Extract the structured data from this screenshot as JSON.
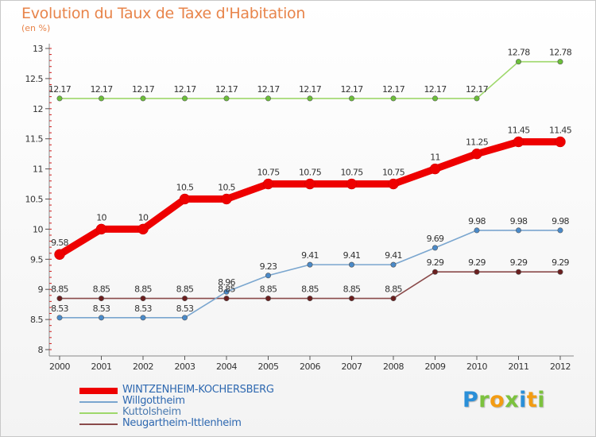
{
  "header": {
    "title": "Evolution du Taux de Taxe d'Habitation",
    "unit": "(en %)"
  },
  "brand": {
    "letters": [
      "P",
      "r",
      "o",
      "x",
      "i",
      "t",
      "i"
    ],
    "colors": [
      "#2a8fd8",
      "#7cc23e",
      "#f39c12",
      "#7cc23e",
      "#2a8fd8",
      "#f39c12",
      "#7cc23e"
    ]
  },
  "chart_data": {
    "type": "line",
    "title": "Evolution du Taux de Taxe d'Habitation",
    "xlabel": "",
    "ylabel": "(en %)",
    "x": [
      "2000",
      "2001",
      "2002",
      "2003",
      "2004",
      "2005",
      "2006",
      "2007",
      "2008",
      "2009",
      "2010",
      "2011",
      "2012"
    ],
    "ylim": [
      8,
      13
    ],
    "yticks": [
      "8",
      "8.5",
      "9",
      "9.5",
      "10",
      "10.5",
      "11",
      "11.5",
      "12",
      "12.5",
      "13"
    ],
    "grid": false,
    "legend_position": "bottom-left",
    "series": [
      {
        "name": "WINTZENHEIM-KOCHERSBERG",
        "color": "#ee0000",
        "marker_color": "#ee0000",
        "values": [
          9.58,
          10,
          10,
          10.5,
          10.5,
          10.75,
          10.75,
          10.75,
          10.75,
          11,
          11.25,
          11.45,
          11.45
        ],
        "labels": [
          "9.58",
          "10",
          "10",
          "10.5",
          "10.5",
          "10.75",
          "10.75",
          "10.75",
          "10.75",
          "11",
          "11.25",
          "11.45",
          "11.45"
        ]
      },
      {
        "name": "Willgottheim",
        "color": "#7aa6cf",
        "marker_color": "#4a8ac9",
        "values": [
          8.53,
          8.53,
          8.53,
          8.53,
          8.96,
          9.23,
          9.41,
          9.41,
          9.41,
          9.69,
          9.98,
          9.98,
          9.98
        ],
        "labels": [
          "8.53",
          "8.53",
          "8.53",
          "8.53",
          "8.96",
          "9.23",
          "9.41",
          "9.41",
          "9.41",
          "9.69",
          "9.98",
          "9.98",
          "9.98"
        ]
      },
      {
        "name": "Kuttolsheim",
        "color": "#9ed86b",
        "marker_color": "#6cbf3a",
        "values": [
          12.17,
          12.17,
          12.17,
          12.17,
          12.17,
          12.17,
          12.17,
          12.17,
          12.17,
          12.17,
          12.17,
          12.78,
          12.78
        ],
        "labels": [
          "12.17",
          "12.17",
          "12.17",
          "12.17",
          "12.17",
          "12.17",
          "12.17",
          "12.17",
          "12.17",
          "12.17",
          "12.17",
          "12.78",
          "12.78"
        ]
      },
      {
        "name": "Neugartheim-Ittlenheim",
        "color": "#8a4a4a",
        "marker_color": "#6b1f1f",
        "values": [
          8.85,
          8.85,
          8.85,
          8.85,
          8.85,
          8.85,
          8.85,
          8.85,
          8.85,
          9.29,
          9.29,
          9.29,
          9.29
        ],
        "labels": [
          "8.85",
          "8.85",
          "8.85",
          "8.85",
          "8.85",
          "8.85",
          "8.85",
          "8.85",
          "8.85",
          "9.29",
          "9.29",
          "9.29",
          "9.29"
        ]
      }
    ]
  }
}
